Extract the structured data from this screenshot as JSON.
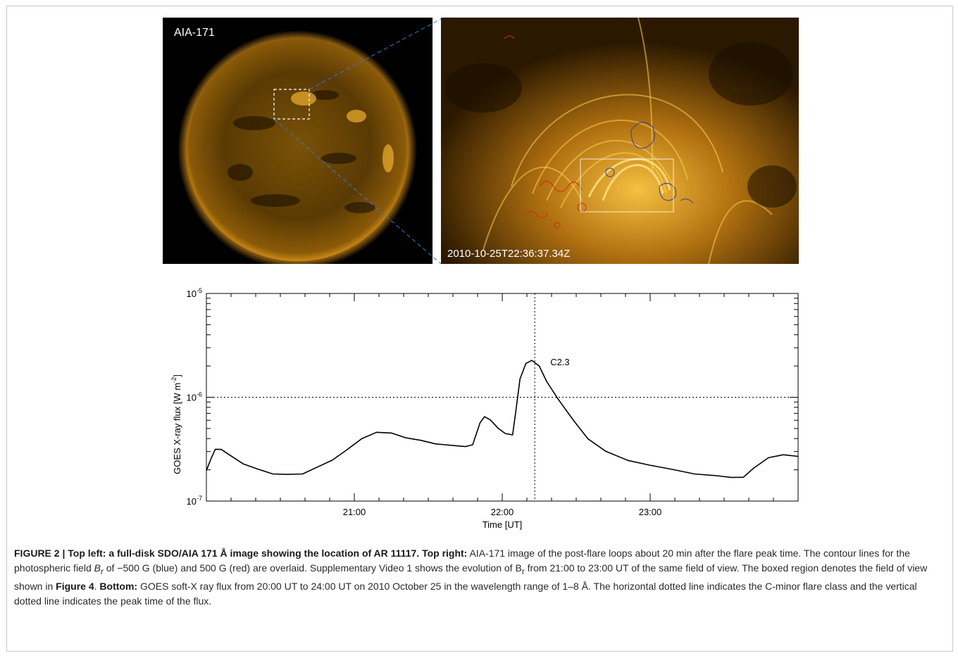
{
  "figure": {
    "left_panel_label": "AIA-171",
    "right_panel_timestamp": "2010-10-25T22:36:37.34Z",
    "colors": {
      "aia_orange": "#f0a020",
      "contour_blue": "#3a3aa8",
      "contour_red": "#d02a10",
      "connector_blue": "#2d7fd0"
    }
  },
  "chart_data": {
    "type": "line",
    "ylabel": "GOES X-ray flux [W m",
    "ylabel_exp": "-2",
    "ylabel_tail": "]",
    "xlabel": "Time [UT]",
    "yscale": "log",
    "ylim": [
      1e-07,
      1e-05
    ],
    "xlim": [
      20.0,
      24.0
    ],
    "y_ticks": [
      {
        "value": 1e-05,
        "base": "10",
        "exp": "-5"
      },
      {
        "value": 1e-06,
        "base": "10",
        "exp": "-6"
      },
      {
        "value": 1e-07,
        "base": "10",
        "exp": "-7"
      }
    ],
    "x_ticks": [
      {
        "value": 21.0,
        "label": "21:00"
      },
      {
        "value": 22.0,
        "label": "22:00"
      },
      {
        "value": 23.0,
        "label": "23:00"
      }
    ],
    "hline": 1e-06,
    "vline": 22.22,
    "annotation": {
      "text": "C2.3",
      "x": 22.22,
      "y": 2.3e-06
    },
    "series": [
      {
        "values": [
          [
            20.0,
            2e-07
          ],
          [
            20.03,
            2.5e-07
          ],
          [
            20.06,
            3.2e-07
          ],
          [
            20.1,
            3.1e-07
          ],
          [
            20.15,
            2.8e-07
          ],
          [
            20.25,
            2.3e-07
          ],
          [
            20.35,
            2e-07
          ],
          [
            20.45,
            1.85e-07
          ],
          [
            20.55,
            1.78e-07
          ],
          [
            20.65,
            1.85e-07
          ],
          [
            20.75,
            2.1e-07
          ],
          [
            20.85,
            2.5e-07
          ],
          [
            20.95,
            3.1e-07
          ],
          [
            21.05,
            4e-07
          ],
          [
            21.15,
            4.6e-07
          ],
          [
            21.25,
            4.5e-07
          ],
          [
            21.35,
            4.1e-07
          ],
          [
            21.45,
            3.8e-07
          ],
          [
            21.55,
            3.6e-07
          ],
          [
            21.65,
            3.4e-07
          ],
          [
            21.75,
            3.4e-07
          ],
          [
            21.8,
            3.5e-07
          ],
          [
            21.85,
            5.6e-07
          ],
          [
            21.88,
            6.6e-07
          ],
          [
            21.92,
            6e-07
          ],
          [
            21.97,
            5e-07
          ],
          [
            22.02,
            4.5e-07
          ],
          [
            22.07,
            4.4e-07
          ],
          [
            22.09,
            7e-07
          ],
          [
            22.12,
            1.5e-06
          ],
          [
            22.16,
            2.1e-06
          ],
          [
            22.2,
            2.3e-06
          ],
          [
            22.25,
            2e-06
          ],
          [
            22.3,
            1.4e-06
          ],
          [
            22.38,
            9.5e-07
          ],
          [
            22.48,
            6e-07
          ],
          [
            22.58,
            4e-07
          ],
          [
            22.7,
            3e-07
          ],
          [
            22.85,
            2.5e-07
          ],
          [
            23.0,
            2.2e-07
          ],
          [
            23.15,
            2e-07
          ],
          [
            23.3,
            1.85e-07
          ],
          [
            23.45,
            1.75e-07
          ],
          [
            23.55,
            1.7e-07
          ],
          [
            23.63,
            1.72e-07
          ],
          [
            23.7,
            2.1e-07
          ],
          [
            23.8,
            2.6e-07
          ],
          [
            23.9,
            2.8e-07
          ],
          [
            24.0,
            2.7e-07
          ]
        ]
      }
    ]
  },
  "caption": {
    "label": "FIGURE 2 | ",
    "bold1": "Top left: a full-disk SDO/AIA 171 Å image showing the location of AR 11117. Top right:",
    "text1": " AIA-171 image of the post-flare loops about 20 min after the flare peak time. The contour lines for the photospheric field ",
    "br": "B",
    "br_sub": "r",
    "text2": " of −500 G (blue) and 500 G (red) are overlaid. Supplementary Video 1 shows the evolution of B",
    "br_sub2": "r",
    "text3": " from 21:00 to 23:00 UT of the same field of view. The boxed region denotes the field of view shown in ",
    "bold2": "Figure 4",
    "text4": ". ",
    "bold3": "Bottom:",
    "text5": " GOES soft-X ray flux from 20:00 UT to 24:00 UT on 2010 October 25 in the wavelength range of 1–8 Å. The horizontal dotted line indicates the C-minor flare class and the vertical dotted line indicates the peak time of the flux."
  }
}
